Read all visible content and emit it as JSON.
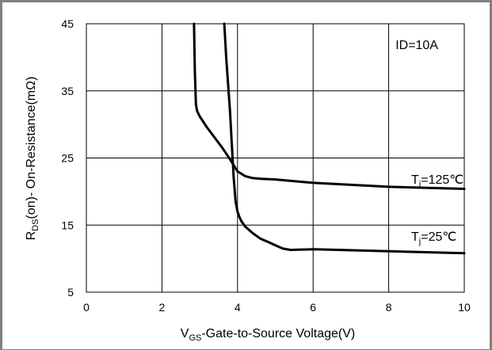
{
  "chart_data": {
    "type": "line",
    "annotation": "ID=10A",
    "xlabel": {
      "prefix": "V",
      "sub": "GS",
      "rest": "-Gate-to-Source  Voltage(V)"
    },
    "ylabel": {
      "prefix": "R",
      "sub": "DS",
      "rest": "(on)- On-Resistance(mΩ)"
    },
    "xlim": [
      0,
      10
    ],
    "ylim": [
      5,
      45
    ],
    "x_ticks": [
      "0",
      "2",
      "4",
      "6",
      "8",
      "10"
    ],
    "y_ticks": [
      "5",
      "15",
      "25",
      "35",
      "45"
    ],
    "grid": true,
    "series": [
      {
        "name": {
          "prefix": "T",
          "sub": "j",
          "rest": "=125℃"
        },
        "x": [
          2.85,
          2.87,
          2.9,
          2.93,
          3.0,
          3.2,
          3.4,
          3.6,
          3.8,
          4.0,
          4.2,
          4.4,
          4.6,
          5.0,
          6.0,
          8.0,
          10.0
        ],
        "y": [
          45,
          38,
          33,
          32,
          31.2,
          29.5,
          28.0,
          26.5,
          24.8,
          23.0,
          22.3,
          22.0,
          21.9,
          21.8,
          21.3,
          20.7,
          20.4
        ]
      },
      {
        "name": {
          "prefix": "T",
          "sub": "j",
          "rest": "=25℃"
        },
        "x": [
          3.65,
          3.7,
          3.8,
          3.85,
          3.9,
          3.95,
          4.0,
          4.05,
          4.1,
          4.2,
          4.4,
          4.6,
          4.8,
          5.0,
          5.2,
          5.4,
          6.0,
          8.0,
          10.0
        ],
        "y": [
          45,
          40,
          32,
          27,
          22,
          18.5,
          17.0,
          16.2,
          15.6,
          14.8,
          13.8,
          13.0,
          12.5,
          12.0,
          11.5,
          11.3,
          11.4,
          11.1,
          10.8
        ]
      }
    ]
  }
}
